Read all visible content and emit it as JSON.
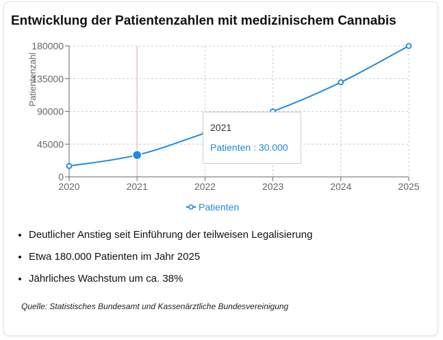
{
  "title": "Entwicklung der Patientenzahlen mit medizinischem Cannabis",
  "tooltip": {
    "label": "2021",
    "value_text": "Patienten : 30.000"
  },
  "bullets": [
    "Deutlicher Anstieg seit Einführung der teilweisen Legalisierung",
    "Etwa 180.000 Patienten im Jahr 2025",
    "Jährliches Wachstum um ca. 38%"
  ],
  "source": "Quelle: Statistisches Bundesamt und Kassenärztliche Bundesvereinigung",
  "colors": {
    "line": "#1e88e5",
    "grid": "#cccccc",
    "axis": "#666666",
    "cursor": "#e8b4c0"
  },
  "chart_data": {
    "type": "line",
    "x": [
      "2020",
      "2021",
      "2022",
      "2023",
      "2024",
      "2025"
    ],
    "series": [
      {
        "name": "Patienten",
        "values": [
          15000,
          30000,
          60000,
          90000,
          130000,
          180000
        ]
      }
    ],
    "ylabel": "Patientenzahl",
    "xlabel": "",
    "yticks": [
      "0",
      "45000",
      "90000",
      "135000",
      "180000"
    ],
    "ylim": [
      0,
      180000
    ],
    "grid": true,
    "legend": "bottom-center",
    "highlighted_index": 1
  }
}
